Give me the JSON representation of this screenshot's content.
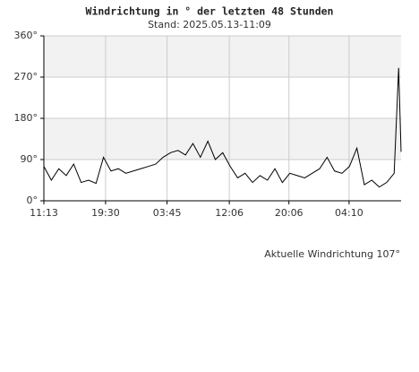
{
  "chart_data": {
    "type": "line",
    "title": "Windrichtung in ° der letzten 48 Stunden",
    "subtitle": "Stand: 2025.05.13-11:09",
    "annotation": "Aktuelle Windrichtung 107°",
    "x": [
      0,
      1,
      2,
      3,
      4,
      5,
      6,
      7,
      8,
      9,
      10,
      11,
      12,
      13,
      14,
      15,
      16,
      17,
      18,
      19,
      20,
      21,
      22,
      23,
      24,
      25,
      26,
      27,
      28,
      29,
      30,
      31,
      32,
      33,
      34,
      35,
      36,
      37,
      38,
      39,
      40,
      41,
      42,
      43,
      44,
      45,
      46,
      47,
      47.6,
      47.93
    ],
    "series": [
      {
        "name": "Windrichtung",
        "color": "#000000",
        "values": [
          75,
          45,
          70,
          55,
          80,
          40,
          45,
          38,
          95,
          65,
          70,
          60,
          65,
          70,
          75,
          80,
          95,
          105,
          110,
          100,
          125,
          95,
          130,
          90,
          105,
          75,
          50,
          60,
          40,
          55,
          45,
          70,
          40,
          60,
          55,
          50,
          60,
          70,
          95,
          65,
          60,
          75,
          115,
          35,
          45,
          30,
          40,
          60,
          290,
          107
        ]
      }
    ],
    "xlim": [
      0,
      47.93
    ],
    "xticks": [
      {
        "value": 0,
        "label": "11:13"
      },
      {
        "value": 8.28,
        "label": "19:30"
      },
      {
        "value": 16.53,
        "label": "03:45"
      },
      {
        "value": 24.88,
        "label": "12:06"
      },
      {
        "value": 32.88,
        "label": "20:06"
      },
      {
        "value": 40.95,
        "label": "04:10"
      }
    ],
    "ylim": [
      0,
      360
    ],
    "yticks": [
      {
        "value": 0,
        "label": "0°"
      },
      {
        "value": 90,
        "label": "90°"
      },
      {
        "value": 180,
        "label": "180°"
      },
      {
        "value": 270,
        "label": "270°"
      },
      {
        "value": 360,
        "label": "360°"
      }
    ],
    "grid": true
  }
}
